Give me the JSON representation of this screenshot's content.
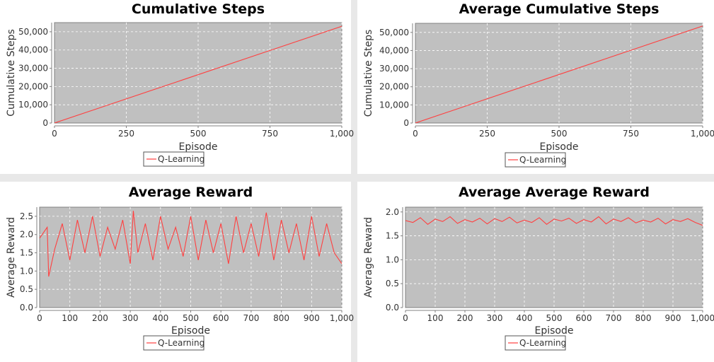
{
  "chart_data": [
    {
      "type": "line",
      "title": "Cumulative Steps",
      "xlabel": "Episode",
      "ylabel": "Cumulative Steps",
      "xlim": [
        0,
        1000
      ],
      "ylim": [
        0,
        55000
      ],
      "xticks": [
        0,
        250,
        500,
        750,
        1000
      ],
      "xtick_labels": [
        "0",
        "250",
        "500",
        "750",
        "1,000"
      ],
      "yticks": [
        0,
        10000,
        20000,
        30000,
        40000,
        50000
      ],
      "ytick_labels": [
        "0",
        "10,000",
        "20,000",
        "30,000",
        "40,000",
        "50,000"
      ],
      "grid": true,
      "legend": "bottom-center",
      "series": [
        {
          "name": "Q-Learning",
          "color": "#ff4040",
          "x": [
            0,
            1000
          ],
          "y": [
            0,
            53000
          ]
        }
      ]
    },
    {
      "type": "line",
      "title": "Average Cumulative Steps",
      "xlabel": "Episode",
      "ylabel": "Cumulative Steps",
      "xlim": [
        0,
        1000
      ],
      "ylim": [
        0,
        55000
      ],
      "xticks": [
        0,
        250,
        500,
        750,
        1000
      ],
      "xtick_labels": [
        "0",
        "250",
        "500",
        "750",
        "1,000"
      ],
      "yticks": [
        0,
        10000,
        20000,
        30000,
        40000,
        50000
      ],
      "ytick_labels": [
        "0",
        "10,000",
        "20,000",
        "30,000",
        "40,000",
        "50,000"
      ],
      "grid": true,
      "legend": "bottom-center",
      "series": [
        {
          "name": "Q-Learning",
          "color": "#ff4040",
          "x": [
            0,
            1000
          ],
          "y": [
            0,
            53500
          ]
        }
      ]
    },
    {
      "type": "line",
      "title": "Average Reward",
      "xlabel": "Episode",
      "ylabel": "Average Reward",
      "xlim": [
        0,
        1000
      ],
      "ylim": [
        0,
        2.75
      ],
      "xticks": [
        0,
        100,
        200,
        300,
        400,
        500,
        600,
        700,
        800,
        900,
        1000
      ],
      "xtick_labels": [
        "0",
        "100",
        "200",
        "300",
        "400",
        "500",
        "600",
        "700",
        "800",
        "900",
        "1,000"
      ],
      "yticks": [
        0,
        0.5,
        1.0,
        1.5,
        2.0,
        2.5
      ],
      "ytick_labels": [
        "0.0",
        "0.5",
        "1.0",
        "1.5",
        "2.0",
        "2.5"
      ],
      "grid": true,
      "legend": "bottom-center",
      "series": [
        {
          "name": "Q-Learning",
          "color": "#ff4040",
          "x": [
            0,
            25,
            30,
            50,
            75,
            100,
            125,
            150,
            175,
            200,
            225,
            250,
            275,
            300,
            310,
            325,
            350,
            375,
            400,
            425,
            450,
            475,
            500,
            525,
            550,
            575,
            600,
            625,
            650,
            675,
            700,
            725,
            750,
            775,
            800,
            825,
            850,
            875,
            900,
            925,
            950,
            975,
            1000
          ],
          "y": [
            1.9,
            2.2,
            0.85,
            1.6,
            2.3,
            1.3,
            2.4,
            1.5,
            2.5,
            1.4,
            2.2,
            1.6,
            2.4,
            1.2,
            2.65,
            1.5,
            2.3,
            1.3,
            2.5,
            1.6,
            2.2,
            1.4,
            2.5,
            1.3,
            2.4,
            1.5,
            2.3,
            1.2,
            2.5,
            1.5,
            2.3,
            1.4,
            2.6,
            1.3,
            2.4,
            1.5,
            2.3,
            1.3,
            2.5,
            1.4,
            2.3,
            1.5,
            1.2
          ]
        }
      ]
    },
    {
      "type": "line",
      "title": "Average Average Reward",
      "xlabel": "Episode",
      "ylabel": "Average Reward",
      "xlim": [
        0,
        1000
      ],
      "ylim": [
        0,
        2.1
      ],
      "xticks": [
        0,
        100,
        200,
        300,
        400,
        500,
        600,
        700,
        800,
        900,
        1000
      ],
      "xtick_labels": [
        "0",
        "100",
        "200",
        "300",
        "400",
        "500",
        "600",
        "700",
        "800",
        "900",
        "1,000"
      ],
      "yticks": [
        0,
        0.5,
        1.0,
        1.5,
        2.0
      ],
      "ytick_labels": [
        "0.0",
        "0.5",
        "1.0",
        "1.5",
        "2.0"
      ],
      "grid": true,
      "legend": "bottom-center",
      "series": [
        {
          "name": "Q-Learning",
          "color": "#ff4040",
          "x": [
            0,
            25,
            50,
            75,
            100,
            125,
            150,
            175,
            200,
            225,
            250,
            275,
            300,
            325,
            350,
            375,
            400,
            425,
            450,
            475,
            500,
            525,
            550,
            575,
            600,
            625,
            650,
            675,
            700,
            725,
            750,
            775,
            800,
            825,
            850,
            875,
            900,
            925,
            950,
            975,
            1000
          ],
          "y": [
            1.82,
            1.78,
            1.88,
            1.74,
            1.85,
            1.8,
            1.9,
            1.76,
            1.84,
            1.79,
            1.87,
            1.75,
            1.86,
            1.8,
            1.89,
            1.77,
            1.83,
            1.78,
            1.88,
            1.74,
            1.85,
            1.81,
            1.87,
            1.76,
            1.84,
            1.79,
            1.9,
            1.75,
            1.85,
            1.8,
            1.88,
            1.77,
            1.83,
            1.79,
            1.87,
            1.75,
            1.84,
            1.8,
            1.86,
            1.78,
            1.72
          ]
        }
      ]
    }
  ]
}
